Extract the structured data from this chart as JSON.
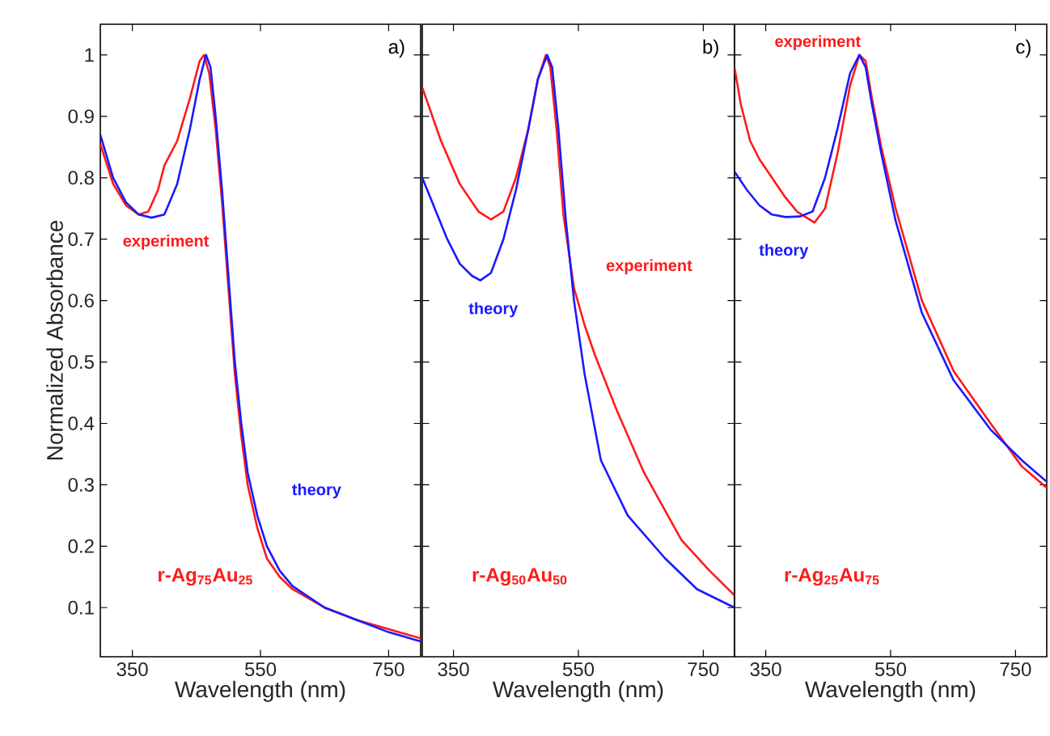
{
  "chart_data": [
    {
      "type": "line",
      "xlabel": "Wavelength (nm)",
      "ylabel": "Normalized Absorbance",
      "xlim": [
        300,
        800
      ],
      "ylim": [
        0.02,
        1.05
      ],
      "xticks": [
        350,
        550,
        750
      ],
      "yticks": [
        0.1,
        0.2,
        0.3,
        0.4,
        0.5,
        0.6,
        0.7,
        0.8,
        0.9,
        1
      ],
      "annotations": [
        "a)",
        "r-Ag$_{75}$Au$_{25}$"
      ],
      "series": [
        {
          "name": "experiment",
          "color": "#ff1a1a",
          "x": [
            300,
            320,
            340,
            360,
            375,
            390,
            400,
            420,
            440,
            455,
            462,
            470,
            480,
            490,
            500,
            510,
            520,
            530,
            545,
            560,
            580,
            600,
            650,
            700,
            750,
            800
          ],
          "values": [
            0.855,
            0.79,
            0.755,
            0.74,
            0.745,
            0.78,
            0.82,
            0.86,
            0.93,
            0.99,
            1.0,
            0.97,
            0.88,
            0.76,
            0.62,
            0.48,
            0.38,
            0.3,
            0.23,
            0.18,
            0.15,
            0.13,
            0.1,
            0.08,
            0.065,
            0.05
          ]
        },
        {
          "name": "theory",
          "color": "#1a1aff",
          "x": [
            300,
            320,
            340,
            360,
            380,
            400,
            420,
            440,
            455,
            465,
            472,
            480,
            490,
            500,
            510,
            520,
            530,
            545,
            560,
            580,
            600,
            650,
            700,
            750,
            800
          ],
          "values": [
            0.87,
            0.8,
            0.76,
            0.74,
            0.735,
            0.74,
            0.79,
            0.88,
            0.96,
            1.0,
            0.98,
            0.9,
            0.78,
            0.64,
            0.5,
            0.4,
            0.32,
            0.25,
            0.2,
            0.16,
            0.135,
            0.1,
            0.08,
            0.06,
            0.045
          ]
        }
      ]
    },
    {
      "type": "line",
      "xlabel": "Wavelength (nm)",
      "xlim": [
        300,
        800
      ],
      "ylim": [
        0.02,
        1.05
      ],
      "xticks": [
        350,
        550,
        750
      ],
      "yticks": [
        0.1,
        0.2,
        0.3,
        0.4,
        0.5,
        0.6,
        0.7,
        0.8,
        0.9,
        1
      ],
      "tick_labels": "x",
      "annotations": [
        "b)",
        "r-Ag$_{50}$Au$_{50}$"
      ],
      "series": [
        {
          "name": "experiment",
          "color": "#ff1a1a",
          "x": [
            300,
            330,
            360,
            390,
            410,
            430,
            450,
            470,
            485,
            498,
            505,
            515,
            526,
            543,
            560,
            577,
            612,
            655,
            715,
            760,
            800
          ],
          "values": [
            0.947,
            0.86,
            0.79,
            0.745,
            0.732,
            0.745,
            0.8,
            0.88,
            0.96,
            1.0,
            0.98,
            0.88,
            0.74,
            0.62,
            0.56,
            0.51,
            0.42,
            0.32,
            0.21,
            0.16,
            0.12
          ]
        },
        {
          "name": "theory",
          "color": "#1a1aff",
          "x": [
            300,
            320,
            340,
            360,
            380,
            393,
            410,
            430,
            450,
            470,
            485,
            500,
            508,
            518,
            530,
            543,
            560,
            586,
            629,
            689,
            740,
            800
          ],
          "values": [
            0.8,
            0.75,
            0.7,
            0.66,
            0.64,
            0.633,
            0.645,
            0.7,
            0.78,
            0.88,
            0.96,
            1.0,
            0.98,
            0.88,
            0.73,
            0.6,
            0.48,
            0.34,
            0.25,
            0.18,
            0.13,
            0.1
          ]
        }
      ]
    },
    {
      "type": "line",
      "xlabel": "Wavelength (nm)",
      "xlim": [
        300,
        800
      ],
      "ylim": [
        0.02,
        1.05
      ],
      "xticks": [
        350,
        550,
        750
      ],
      "yticks": [
        0.1,
        0.2,
        0.3,
        0.4,
        0.5,
        0.6,
        0.7,
        0.8,
        0.9,
        1
      ],
      "tick_labels": "x",
      "annotations": [
        "c)",
        "r-Ag$_{25}$Au$_{75}$"
      ],
      "series": [
        {
          "name": "experiment",
          "color": "#ff1a1a",
          "x": [
            300,
            310,
            325,
            340,
            360,
            380,
            400,
            428,
            445,
            465,
            485,
            500,
            510,
            520,
            535,
            558,
            600,
            651,
            710,
            760,
            800
          ],
          "values": [
            0.98,
            0.92,
            0.86,
            0.83,
            0.8,
            0.77,
            0.745,
            0.727,
            0.75,
            0.84,
            0.95,
            1.0,
            0.99,
            0.93,
            0.85,
            0.75,
            0.6,
            0.485,
            0.4,
            0.33,
            0.295
          ]
        },
        {
          "name": "theory",
          "color": "#1a1aff",
          "x": [
            300,
            320,
            340,
            360,
            382,
            405,
            425,
            445,
            465,
            485,
            500,
            510,
            520,
            535,
            558,
            600,
            651,
            710,
            760,
            800
          ],
          "values": [
            0.81,
            0.78,
            0.755,
            0.74,
            0.736,
            0.737,
            0.745,
            0.8,
            0.88,
            0.97,
            1.0,
            0.98,
            0.92,
            0.84,
            0.73,
            0.58,
            0.47,
            0.39,
            0.34,
            0.305
          ]
        }
      ]
    }
  ]
}
